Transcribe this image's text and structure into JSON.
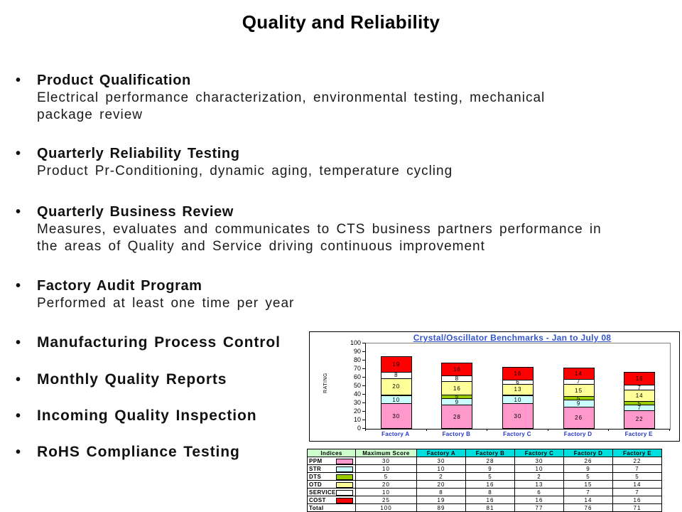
{
  "slide": {
    "title": "Quality and Reliability"
  },
  "bullets": [
    {
      "heading": "Product Qualification",
      "lines": [
        "Electrical performance characterization, environmental testing, mechanical",
        "package review"
      ]
    },
    {
      "heading": "Quarterly Reliability Testing",
      "lines": [
        "Product Pr-Conditioning, dynamic aging, temperature cycling"
      ]
    },
    {
      "heading": "Quarterly Business Review",
      "lines": [
        "Measures, evaluates and communicates to CTS business partners performance in",
        "the areas of Quality and Service driving continuous improvement"
      ]
    },
    {
      "heading": "Factory Audit Program",
      "lines": [
        "Performed at least one time per year"
      ]
    },
    {
      "heading": "Manufacturing Process Control",
      "lines": []
    },
    {
      "heading": "Monthly Quality Reports",
      "lines": []
    },
    {
      "heading": "Incoming Quality Inspection",
      "lines": []
    },
    {
      "heading": "RoHS Compliance Testing",
      "lines": []
    }
  ],
  "chart_data": {
    "type": "bar",
    "stacked": true,
    "title": "Crystal/Oscillator Benchmarks - Jan to July 08",
    "title_color": "#3355cc",
    "ylabel": "RATING",
    "xlabel": "",
    "ylim": [
      0,
      100
    ],
    "ytick_step": 10,
    "grid": false,
    "legend_position": "none",
    "categories": [
      "Factory A",
      "Factory B",
      "Factory C",
      "Factory D",
      "Factory E"
    ],
    "series": [
      {
        "name": "PPM",
        "color": "#ff99cc",
        "values": [
          30,
          28,
          30,
          26,
          22
        ]
      },
      {
        "name": "STR",
        "color": "#ccffff",
        "values": [
          10,
          9,
          10,
          9,
          7
        ]
      },
      {
        "name": "DTS",
        "color": "#99cc00",
        "values": [
          2,
          5,
          2,
          5,
          5
        ]
      },
      {
        "name": "OTD",
        "color": "#ffff99",
        "values": [
          20,
          16,
          13,
          15,
          14
        ]
      },
      {
        "name": "SERVICE",
        "color": "#ffffff",
        "values": [
          8,
          8,
          6,
          7,
          7
        ]
      },
      {
        "name": "COST",
        "color": "#ff0000",
        "values": [
          19,
          16,
          16,
          14,
          16
        ]
      }
    ],
    "totals": [
      89,
      81,
      77,
      76,
      71
    ]
  },
  "table": {
    "headers": [
      "Indices",
      "Maximum Score",
      "Factory A",
      "Factory B",
      "Factory C",
      "Factory D",
      "Factory E"
    ],
    "header_green": "#ccffcc",
    "header_cyan": "#00dddd",
    "rows": [
      {
        "label": "PPM",
        "swatch": "#ff99cc",
        "max": "30",
        "values": [
          "30",
          "28",
          "30",
          "26",
          "22"
        ]
      },
      {
        "label": "STR",
        "swatch": "#ccffff",
        "max": "10",
        "values": [
          "10",
          "9",
          "10",
          "9",
          "7"
        ]
      },
      {
        "label": "DTS",
        "swatch": "#99cc00",
        "max": "5",
        "values": [
          "2",
          "5",
          "2",
          "5",
          "5"
        ]
      },
      {
        "label": "OTD",
        "swatch": "#ffff99",
        "max": "20",
        "values": [
          "20",
          "16",
          "13",
          "15",
          "14"
        ]
      },
      {
        "label": "SERVICE",
        "swatch": "#ffffff",
        "max": "10",
        "values": [
          "8",
          "8",
          "6",
          "7",
          "7"
        ]
      },
      {
        "label": "COST",
        "swatch": "#ff0000",
        "max": "25",
        "values": [
          "19",
          "16",
          "16",
          "14",
          "16"
        ]
      }
    ],
    "total_row": {
      "label": "Total",
      "max": "100",
      "values": [
        "89",
        "81",
        "77",
        "76",
        "71"
      ]
    }
  }
}
